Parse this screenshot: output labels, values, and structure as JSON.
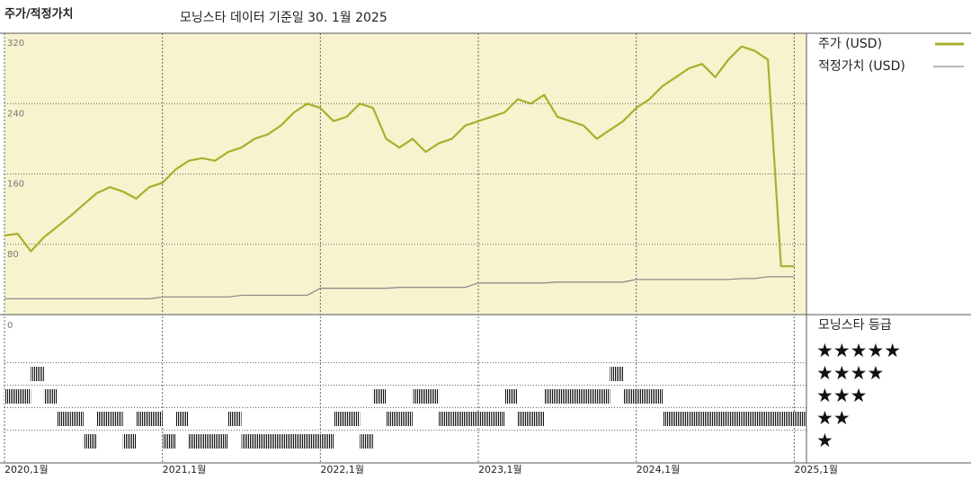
{
  "chart_data": {
    "type": "line",
    "title": "주가/적정가치",
    "subtitle": "모닝스타 데이터 기준일 30. 1월 2025",
    "x": [
      "2020-01",
      "2020-02",
      "2020-03",
      "2020-04",
      "2020-05",
      "2020-06",
      "2020-07",
      "2020-08",
      "2020-09",
      "2020-10",
      "2020-11",
      "2020-12",
      "2021-01",
      "2021-02",
      "2021-03",
      "2021-04",
      "2021-05",
      "2021-06",
      "2021-07",
      "2021-08",
      "2021-09",
      "2021-10",
      "2021-11",
      "2021-12",
      "2022-01",
      "2022-02",
      "2022-03",
      "2022-04",
      "2022-05",
      "2022-06",
      "2022-07",
      "2022-08",
      "2022-09",
      "2022-10",
      "2022-11",
      "2022-12",
      "2023-01",
      "2023-02",
      "2023-03",
      "2023-04",
      "2023-05",
      "2023-06",
      "2023-07",
      "2023-08",
      "2023-09",
      "2023-10",
      "2023-11",
      "2023-12",
      "2024-01",
      "2024-02",
      "2024-03",
      "2024-04",
      "2024-05",
      "2024-06",
      "2024-07",
      "2024-08",
      "2024-09",
      "2024-10",
      "2024-11",
      "2024-12",
      "2025-01"
    ],
    "xlim": [
      "2020-01",
      "2025-02"
    ],
    "xticks": [
      {
        "value": "2020-01",
        "label": "2020,1월"
      },
      {
        "value": "2021-01",
        "label": "2021,1월"
      },
      {
        "value": "2022-01",
        "label": "2022,1월"
      },
      {
        "value": "2023-01",
        "label": "2023,1월"
      },
      {
        "value": "2024-01",
        "label": "2024,1월"
      },
      {
        "value": "2025-01",
        "label": "2025,1월"
      }
    ],
    "ylim": [
      0,
      320
    ],
    "yticks": [
      80,
      160,
      240,
      320
    ],
    "grid": true,
    "series": [
      {
        "name": "주가 (USD)",
        "color": "#a9b02c",
        "values": [
          90,
          92,
          72,
          88,
          100,
          112,
          125,
          138,
          145,
          140,
          132,
          145,
          150,
          165,
          175,
          178,
          175,
          185,
          190,
          200,
          205,
          215,
          230,
          240,
          235,
          220,
          225,
          240,
          235,
          200,
          190,
          200,
          185,
          195,
          200,
          215,
          220,
          225,
          230,
          245,
          240,
          250,
          225,
          220,
          215,
          200,
          210,
          220,
          235,
          245,
          260,
          270,
          280,
          285,
          270,
          290,
          305,
          300,
          290,
          55,
          55
        ]
      },
      {
        "name": "적정가치 (USD)",
        "color": "#8c8c8c",
        "values": [
          18,
          18,
          18,
          18,
          18,
          18,
          18,
          18,
          18,
          18,
          18,
          18,
          20,
          20,
          20,
          20,
          20,
          20,
          22,
          22,
          22,
          22,
          22,
          22,
          30,
          30,
          30,
          30,
          30,
          30,
          31,
          31,
          31,
          31,
          31,
          31,
          36,
          36,
          36,
          36,
          36,
          36,
          37,
          37,
          37,
          37,
          37,
          37,
          40,
          40,
          40,
          40,
          40,
          40,
          40,
          40,
          41,
          41,
          43,
          43,
          43
        ]
      }
    ],
    "rating_title": "모닝스타 등급",
    "rating_tick": 0,
    "rating_levels": [
      {
        "value": 5,
        "label": "★★★★★"
      },
      {
        "value": 4,
        "label": "★★★★"
      },
      {
        "value": 3,
        "label": "★★★"
      },
      {
        "value": 2,
        "label": "★★"
      },
      {
        "value": 1,
        "label": "★"
      }
    ],
    "ratings": [
      3,
      3,
      4,
      3,
      2,
      2,
      1,
      2,
      2,
      1,
      2,
      2,
      1,
      2,
      1,
      1,
      1,
      2,
      1,
      1,
      1,
      1,
      1,
      1,
      1,
      2,
      2,
      1,
      3,
      2,
      2,
      3,
      3,
      2,
      2,
      2,
      2,
      2,
      3,
      2,
      2,
      3,
      3,
      3,
      3,
      3,
      4,
      3,
      3,
      3,
      2,
      2,
      2,
      2,
      2,
      2,
      2,
      2,
      2,
      2,
      2
    ]
  }
}
